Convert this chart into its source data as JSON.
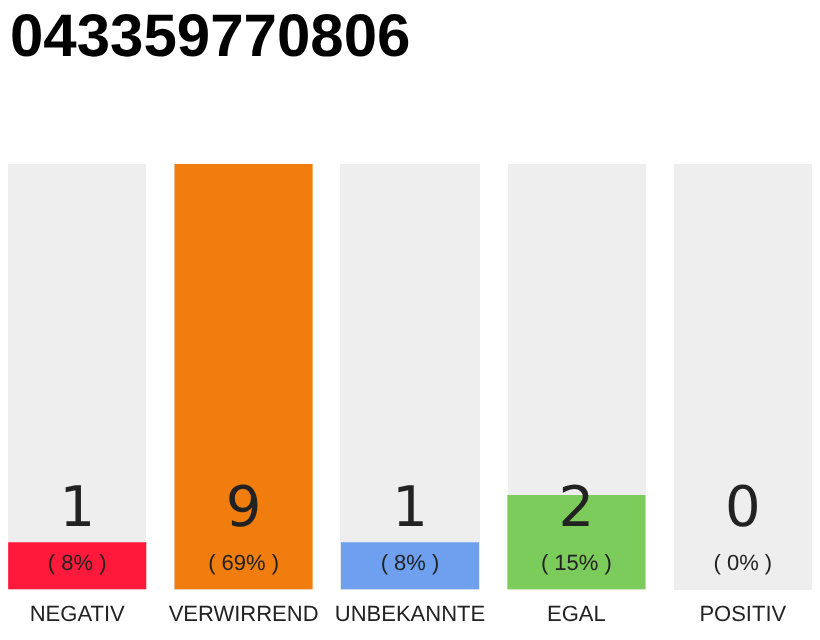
{
  "chart_data": {
    "type": "bar",
    "title": "043359770806",
    "categories": [
      "NEGATIV",
      "VERWIRREND",
      "UNBEKANNTE",
      "EGAL",
      "POSITIV"
    ],
    "values": [
      1,
      9,
      1,
      2,
      0
    ],
    "colors": [
      "#ff1a3c",
      "#f07d0e",
      "#6fa0f0",
      "#7ccc5c",
      "#cccccc"
    ],
    "ylim": [
      0,
      9
    ],
    "tick_labels": "x",
    "grid": false,
    "legend": false,
    "data_labels": true,
    "annotations": [
      "( 8% )",
      "( 69% )",
      "( 8% )",
      "( 15% )",
      "( 0% )"
    ]
  }
}
